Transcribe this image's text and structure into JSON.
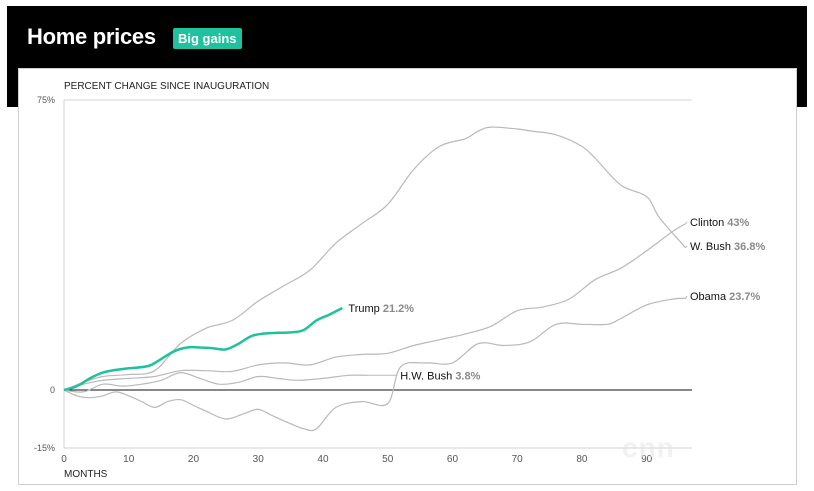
{
  "header": {
    "title": "Home prices",
    "badge": "Big gains"
  },
  "colors": {
    "trump": "#1fc19e",
    "others": "#b9b9b9",
    "badge": "#1fc19e"
  },
  "chart_data": {
    "type": "line",
    "title": "",
    "ylabel": "PERCENT CHANGE SINCE INAUGURATION",
    "xlabel": "MONTHS",
    "xlim": [
      0,
      97
    ],
    "ylim": [
      -15,
      75
    ],
    "xticks": [
      0,
      10,
      20,
      30,
      40,
      50,
      60,
      70,
      80,
      90
    ],
    "yticks": [
      {
        "value": 75,
        "label": "75%"
      },
      {
        "value": 0,
        "label": "0"
      },
      {
        "value": -15,
        "label": "-15%"
      }
    ],
    "series": [
      {
        "name": "Trump",
        "end_label": "21.2%",
        "highlight": true,
        "x": [
          0,
          2,
          4,
          6,
          8,
          10,
          13,
          15,
          17,
          19,
          21,
          23,
          25,
          27,
          29,
          31,
          33,
          35,
          37,
          39,
          41,
          43
        ],
        "y": [
          0,
          1,
          3,
          4.5,
          5.2,
          5.6,
          6.2,
          8,
          10,
          11,
          11,
          10.8,
          10.5,
          12,
          14,
          14.6,
          14.8,
          14.9,
          15.5,
          18,
          19.5,
          21.2
        ]
      },
      {
        "name": "Clinton",
        "end_label": "43%",
        "highlight": false,
        "x": [
          0,
          3,
          6,
          10,
          14,
          18,
          22,
          26,
          30,
          34,
          38,
          42,
          46,
          50,
          54,
          58,
          62,
          66,
          70,
          74,
          78,
          82,
          86,
          90,
          94,
          96
        ],
        "y": [
          0,
          1.5,
          2.5,
          3,
          3.5,
          5,
          5,
          4.8,
          6.5,
          7,
          6.5,
          8.5,
          9.2,
          9.5,
          11.5,
          13,
          14.5,
          16.5,
          20.5,
          21.5,
          23.5,
          28.5,
          31.5,
          36,
          41,
          43
        ]
      },
      {
        "name": "W. Bush",
        "end_label": "36.8%",
        "highlight": false,
        "x": [
          0,
          3,
          6,
          10,
          14,
          18,
          22,
          26,
          30,
          34,
          38,
          42,
          46,
          50,
          54,
          58,
          62,
          64,
          66,
          70,
          72,
          76,
          80,
          82,
          86,
          90,
          92,
          96
        ],
        "y": [
          0,
          2,
          3.5,
          4,
          5,
          12,
          16,
          18,
          23,
          27,
          31,
          38,
          43,
          48,
          57,
          63,
          65,
          67,
          68,
          67.5,
          67,
          66,
          63,
          60,
          53,
          50,
          44.5,
          36.8
        ]
      },
      {
        "name": "Obama",
        "end_label": "23.7%",
        "highlight": false,
        "x": [
          0,
          2,
          4,
          6,
          8,
          10,
          12,
          14,
          16,
          18,
          20,
          22,
          25,
          28,
          30,
          32,
          34,
          37,
          39,
          42,
          46,
          50,
          52,
          56,
          60,
          64,
          68,
          72,
          76,
          80,
          84,
          86,
          90,
          94,
          96
        ],
        "y": [
          0,
          -1.5,
          -2,
          -1.5,
          -0.5,
          -1.5,
          -3,
          -4.5,
          -3,
          -2.5,
          -4,
          -5.5,
          -7.5,
          -6,
          -5,
          -6.5,
          -8,
          -10,
          -10,
          -4.5,
          -3,
          -3.5,
          6,
          7,
          7,
          12,
          11.5,
          12.5,
          17,
          17,
          17,
          18.5,
          22,
          23.5,
          23.7
        ]
      },
      {
        "name": "H.W. Bush",
        "end_label": "3.8%",
        "highlight": false,
        "x": [
          0,
          3,
          6,
          9,
          12,
          15,
          18,
          21,
          24,
          27,
          30,
          33,
          36,
          40,
          44,
          47
        ],
        "y": [
          0,
          -0.5,
          1.5,
          1,
          1.5,
          2.5,
          4.5,
          3,
          1.5,
          2,
          3.5,
          3,
          2.5,
          3,
          3.8,
          3.8
        ]
      }
    ],
    "grid": "horizontal",
    "legend": "end-of-line labels"
  }
}
